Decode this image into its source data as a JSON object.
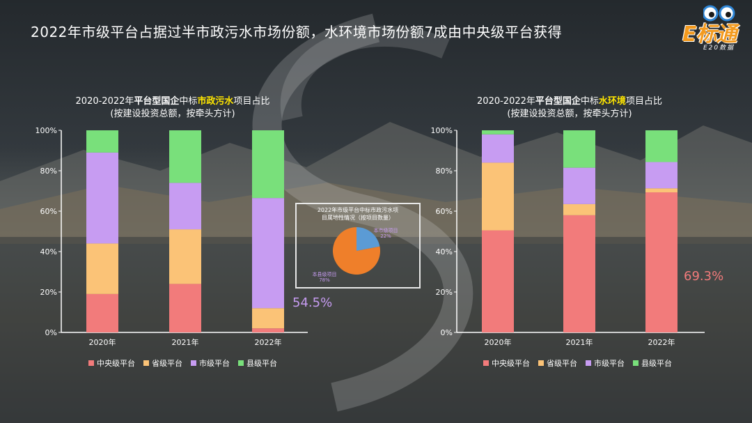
{
  "title": "2022年市级平台占据过半市政污水市场份额，水环境市场份额7成由中央级平台获得",
  "logo": {
    "text": "E标通",
    "sub": "E20数据"
  },
  "series_colors": {
    "中央级平台": "#f27b7b",
    "省级平台": "#fbc377",
    "市级平台": "#c79cf2",
    "县级平台": "#79e07b"
  },
  "chart_data": [
    {
      "type": "bar",
      "stacked": true,
      "title_parts": [
        "2020-2022年",
        "平台型国企",
        "中标",
        "市政污水",
        "项目占比"
      ],
      "subtitle": "(按建设投资总额，按牵头方计)",
      "categories": [
        "2020年",
        "2021年",
        "2022年"
      ],
      "series": [
        {
          "name": "中央级平台",
          "values": [
            19,
            24,
            2
          ]
        },
        {
          "name": "省级平台",
          "values": [
            25,
            27,
            10
          ]
        },
        {
          "name": "市级平台",
          "values": [
            45,
            23,
            54.5
          ]
        },
        {
          "name": "县级平台",
          "values": [
            11,
            26,
            33.5
          ]
        }
      ],
      "yticks": [
        "0%",
        "20%",
        "40%",
        "60%",
        "80%",
        "100%"
      ],
      "ylim": [
        0,
        100
      ],
      "callout": {
        "text": "54.5%",
        "color": "#c79cf2"
      },
      "legend": [
        "中央级平台",
        "省级平台",
        "市级平台",
        "县级平台"
      ],
      "legend_position": "bottom"
    },
    {
      "type": "bar",
      "stacked": true,
      "title_parts": [
        "2020-2022年",
        "平台型国企",
        "中标",
        "水环境",
        "项目占比"
      ],
      "subtitle": "(按建设投资总额，按牵头方计)",
      "categories": [
        "2020年",
        "2021年",
        "2022年"
      ],
      "series": [
        {
          "name": "中央级平台",
          "values": [
            50.5,
            58,
            69.3
          ]
        },
        {
          "name": "省级平台",
          "values": [
            33.5,
            5.5,
            2
          ]
        },
        {
          "name": "市级平台",
          "values": [
            14,
            18,
            13
          ]
        },
        {
          "name": "县级平台",
          "values": [
            2,
            18.5,
            15.7
          ]
        }
      ],
      "yticks": [
        "0%",
        "20%",
        "40%",
        "60%",
        "80%",
        "100%"
      ],
      "ylim": [
        0,
        100
      ],
      "callout": {
        "text": "69.3%",
        "color": "#f27b7b"
      },
      "legend": [
        "中央级平台",
        "省级平台",
        "市级平台",
        "县级平台"
      ],
      "legend_position": "bottom"
    },
    {
      "type": "pie",
      "title_line1": "2022年市级平台中标市政污水项",
      "title_line2": "目属地性情况（按项目数量）",
      "slices": [
        {
          "name": "本市级项目",
          "value": 22,
          "label": "22%",
          "color": "#5b9bd5"
        },
        {
          "name": "本县级项目",
          "value": 78,
          "label": "78%",
          "color": "#ef7f2a"
        }
      ]
    }
  ]
}
